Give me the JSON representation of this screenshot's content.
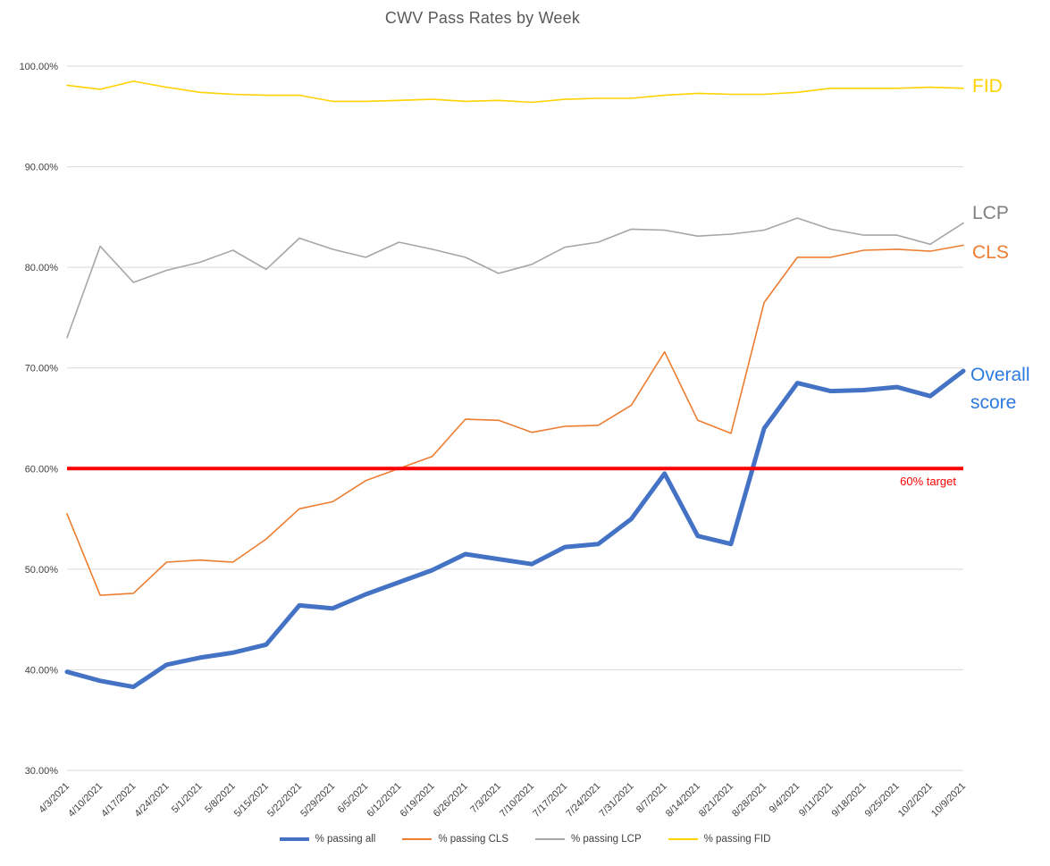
{
  "chart_data": {
    "type": "line",
    "title": "CWV Pass Rates by Week",
    "x": [
      "4/3/2021",
      "4/10/2021",
      "4/17/2021",
      "4/24/2021",
      "5/1/2021",
      "5/8/2021",
      "5/15/2021",
      "5/22/2021",
      "5/29/2021",
      "6/5/2021",
      "6/12/2021",
      "6/19/2021",
      "6/26/2021",
      "7/3/2021",
      "7/10/2021",
      "7/17/2021",
      "7/24/2021",
      "7/31/2021",
      "8/7/2021",
      "8/14/2021",
      "8/21/2021",
      "8/28/2021",
      "9/4/2021",
      "9/11/2021",
      "9/18/2021",
      "9/25/2021",
      "10/2/2021",
      "10/9/2021"
    ],
    "ylim": [
      30,
      100
    ],
    "y_ticks": [
      {
        "value": 100,
        "label": "100.00%"
      },
      {
        "value": 90,
        "label": "90.00%"
      },
      {
        "value": 80,
        "label": "80.00%"
      },
      {
        "value": 70,
        "label": "70.00%"
      },
      {
        "value": 60,
        "label": "60.00%"
      },
      {
        "value": 50,
        "label": "50.00%"
      },
      {
        "value": 40,
        "label": "40.00%"
      },
      {
        "value": 30,
        "label": "30.00%"
      }
    ],
    "grid": true,
    "grid_color": "#D9D9D9",
    "axis_text_color": "#404040",
    "title_color": "#595959",
    "legend_position": "bottom",
    "series": [
      {
        "name": "% passing all",
        "side_label": "Overall score",
        "color": "#4472C4",
        "label_color": "#2B7BE0",
        "stroke_width": 5,
        "values": [
          39.8,
          38.9,
          38.3,
          40.5,
          41.2,
          41.7,
          42.5,
          46.4,
          46.1,
          47.5,
          48.7,
          49.9,
          51.5,
          51.0,
          50.5,
          52.2,
          52.5,
          55.0,
          59.5,
          53.3,
          52.5,
          64.0,
          68.5,
          67.7,
          67.8,
          68.1,
          67.2,
          69.7
        ]
      },
      {
        "name": "% passing CLS",
        "side_label": "CLS",
        "color": "#ED7D31",
        "label_color": "#ED7D31",
        "stroke_width": 1.6,
        "values": [
          55.5,
          47.4,
          47.6,
          50.7,
          50.9,
          50.7,
          53.0,
          56.0,
          56.7,
          58.8,
          60.0,
          61.2,
          64.9,
          64.8,
          63.6,
          64.2,
          64.3,
          66.3,
          71.6,
          64.8,
          63.5,
          76.5,
          81.0,
          81.0,
          81.7,
          81.8,
          81.6,
          82.2
        ]
      },
      {
        "name": "% passing LCP",
        "side_label": "LCP",
        "color": "#A6A6A6",
        "label_color": "#808080",
        "stroke_width": 1.6,
        "values": [
          73.0,
          82.1,
          78.5,
          79.7,
          80.5,
          81.7,
          79.8,
          82.9,
          81.8,
          81.0,
          82.5,
          81.8,
          81.0,
          79.4,
          80.3,
          82.0,
          82.5,
          83.8,
          83.7,
          83.1,
          83.3,
          83.7,
          84.9,
          83.8,
          83.2,
          83.2,
          82.3,
          84.4
        ]
      },
      {
        "name": "% passing FID",
        "side_label": "FID",
        "color": "#FFD200",
        "label_color": "#FFD200",
        "stroke_width": 1.6,
        "values": [
          98.1,
          97.7,
          98.5,
          97.9,
          97.4,
          97.2,
          97.1,
          97.1,
          96.5,
          96.5,
          96.6,
          96.7,
          96.5,
          96.6,
          96.4,
          96.7,
          96.8,
          96.8,
          97.1,
          97.3,
          97.2,
          97.2,
          97.4,
          97.8,
          97.8,
          97.8,
          97.9,
          97.8
        ]
      }
    ],
    "target": {
      "value": 60,
      "label": "60% target",
      "color": "#FF0000"
    }
  }
}
